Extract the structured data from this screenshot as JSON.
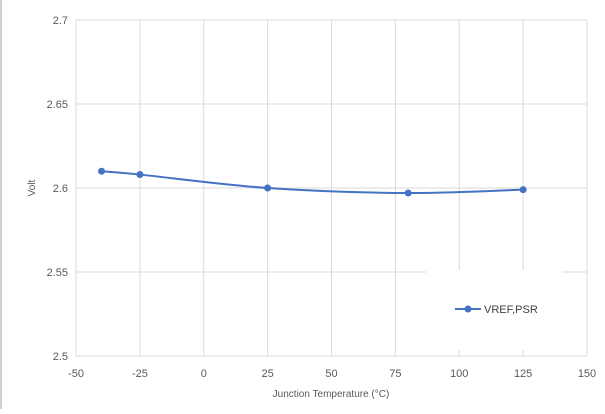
{
  "chart_data": {
    "type": "line",
    "title": "",
    "xlabel": "Junction Temperature (°C)",
    "ylabel": "Volt",
    "xlim": [
      -50,
      150
    ],
    "ylim": [
      2.5,
      2.7
    ],
    "xticks": [
      -50,
      -25,
      0,
      25,
      50,
      75,
      100,
      125,
      150
    ],
    "yticks": [
      2.5,
      2.55,
      2.6,
      2.65,
      2.7
    ],
    "xtick_labels": [
      "-50",
      "-25",
      "0",
      "25",
      "50",
      "75",
      "100",
      "125",
      "150"
    ],
    "ytick_labels": [
      "2.5",
      "2.55",
      "2.6",
      "2.65",
      "2.7"
    ],
    "grid": true,
    "smooth": true,
    "legend_position": "lower-right",
    "series": [
      {
        "name": "VREF,PSR",
        "color": "#4472c4",
        "marker": "circle",
        "x": [
          -40,
          -25,
          25,
          80,
          125
        ],
        "y": [
          2.61,
          2.608,
          2.6,
          2.597,
          2.599
        ]
      }
    ]
  }
}
